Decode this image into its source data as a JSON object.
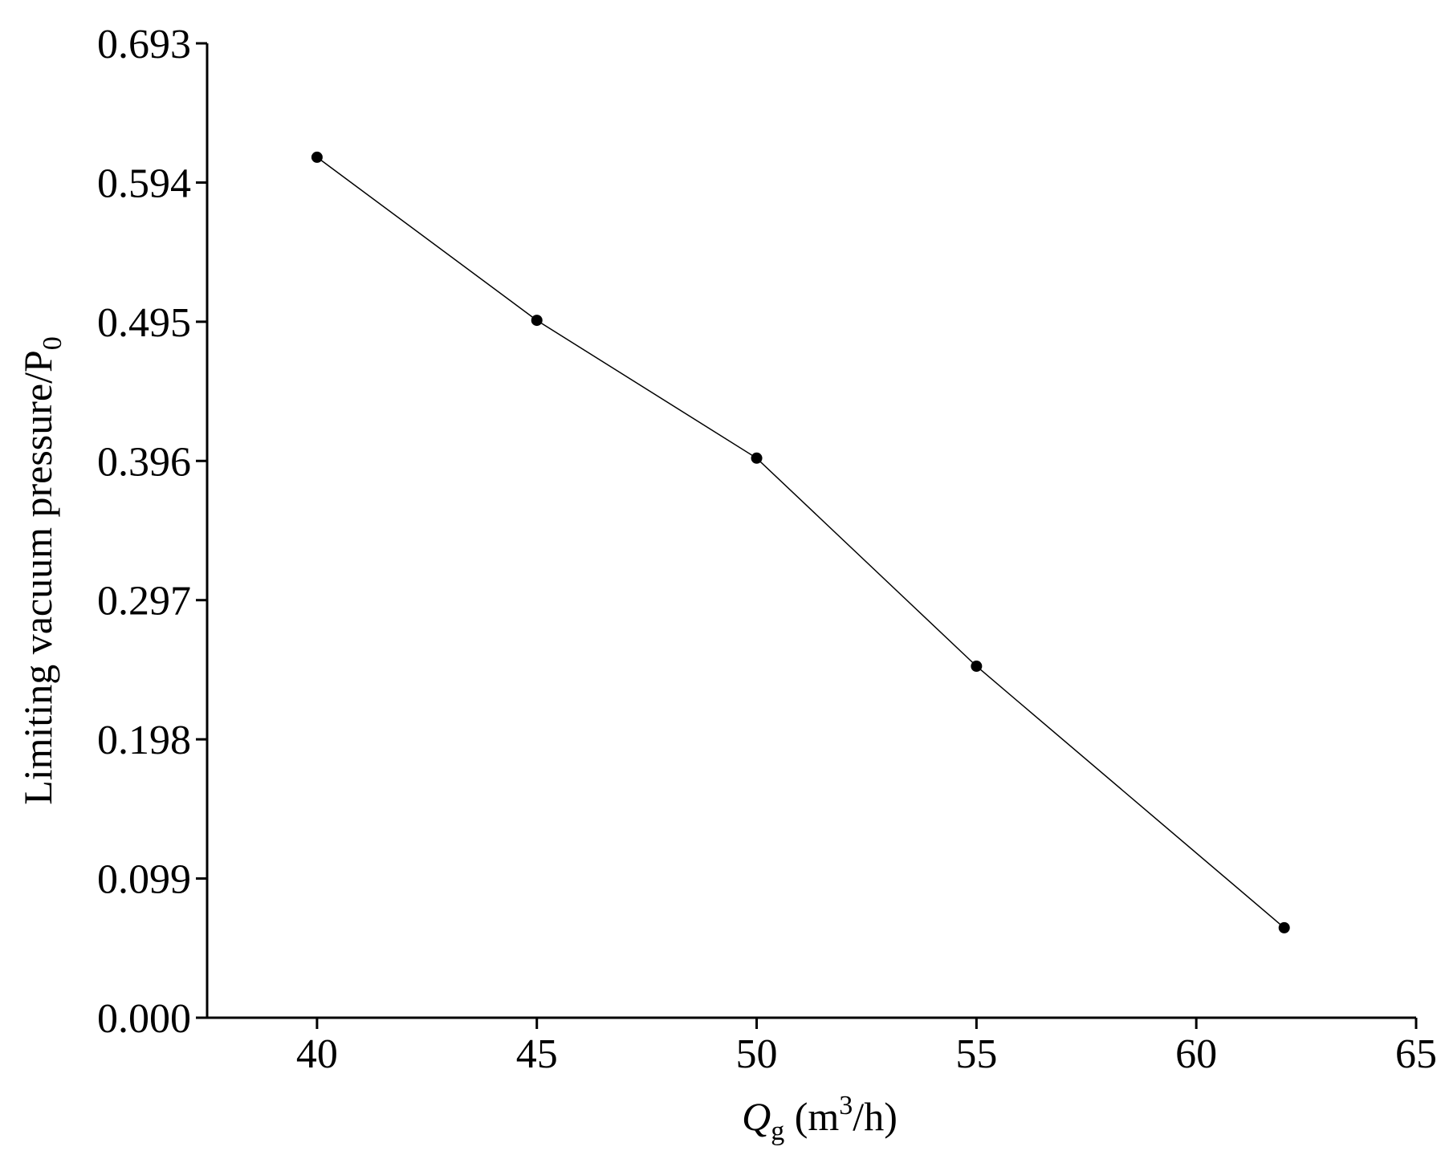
{
  "chart_data": {
    "type": "line",
    "title": "",
    "xlabel": {
      "italic": "Q",
      "subscript": "g",
      "text_before_sup": " (m",
      "superscript": "3",
      "text_after_sup": "/h)"
    },
    "ylabel": {
      "text": "Limiting vacuum pressure/P",
      "subscript": "0"
    },
    "xlim": [
      37.5,
      65
    ],
    "ylim": [
      0.0,
      0.693
    ],
    "x_ticks": [
      40,
      45,
      50,
      55,
      60,
      65
    ],
    "x_tick_labels": [
      "40",
      "45",
      "50",
      "55",
      "60",
      "65"
    ],
    "y_ticks": [
      0.0,
      0.099,
      0.198,
      0.297,
      0.396,
      0.495,
      0.594,
      0.693
    ],
    "y_tick_labels": [
      "0.000",
      "0.099",
      "0.198",
      "0.297",
      "0.396",
      "0.495",
      "0.594",
      "0.693"
    ],
    "grid": false,
    "legend": "none",
    "series": [
      {
        "x": [
          40,
          45,
          50,
          55,
          62
        ],
        "y": [
          0.612,
          0.496,
          0.398,
          0.25,
          0.064
        ],
        "line_color": "#000000",
        "marker_color": "#000000",
        "marker": "circle"
      }
    ]
  }
}
